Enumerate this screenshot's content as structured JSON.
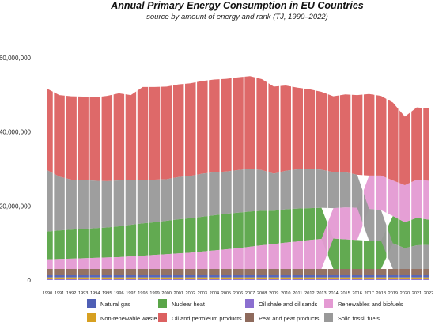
{
  "chart_data": {
    "type": "area",
    "title": "Annual Primary Energy Consumption in EU Countries",
    "subtitle": "source by amount of energy and rank (TJ, 1990–2022)",
    "xlabel": "",
    "ylabel": "",
    "ylim": [
      0,
      70000000
    ],
    "y_ticks": [
      0,
      20000000,
      40000000,
      60000000
    ],
    "y_tick_labels": [
      "0",
      "20,000,000",
      "40,000,000",
      "60,000,000"
    ],
    "grid": false,
    "legend_position": "bottom",
    "stacking": "ranked (smallest at bottom, largest on top, per year)",
    "x": [
      1990,
      1991,
      1992,
      1993,
      1994,
      1995,
      1996,
      1997,
      1998,
      1999,
      2000,
      2001,
      2002,
      2003,
      2004,
      2005,
      2006,
      2007,
      2008,
      2009,
      2010,
      2011,
      2012,
      2013,
      2014,
      2015,
      2016,
      2017,
      2018,
      2019,
      2020,
      2021,
      2022
    ],
    "series": [
      {
        "name": "Natural gas",
        "color": "#4f5fb5",
        "values": [
          800000,
          800000,
          800000,
          800000,
          800000,
          800000,
          800000,
          800000,
          800000,
          800000,
          800000,
          800000,
          800000,
          800000,
          800000,
          800000,
          800000,
          800000,
          800000,
          800000,
          800000,
          800000,
          800000,
          800000,
          800000,
          800000,
          800000,
          800000,
          800000,
          800000,
          800000,
          800000,
          800000
        ]
      },
      {
        "name": "Nuclear heat",
        "color": "#5aa548",
        "values": [
          7500000,
          7700000,
          7800000,
          7900000,
          8000000,
          8100000,
          8300000,
          8500000,
          8700000,
          8800000,
          9000000,
          9200000,
          9300000,
          9400000,
          9500000,
          9600000,
          9600000,
          9500000,
          9300000,
          9000000,
          9000000,
          8900000,
          8600000,
          8400000,
          8200000,
          8000000,
          7800000,
          7600000,
          7600000,
          7400000,
          7000000,
          7400000,
          6800000
        ]
      },
      {
        "name": "Oil shale and oil sands",
        "color": "#8b6fd0",
        "values": [
          300000,
          300000,
          300000,
          300000,
          300000,
          300000,
          300000,
          300000,
          300000,
          300000,
          300000,
          300000,
          300000,
          300000,
          300000,
          300000,
          300000,
          300000,
          300000,
          300000,
          300000,
          300000,
          300000,
          300000,
          300000,
          300000,
          300000,
          300000,
          300000,
          300000,
          300000,
          300000,
          300000
        ]
      },
      {
        "name": "Renewables and biofuels",
        "color": "#e49ad3",
        "values": [
          2600000,
          2700000,
          2800000,
          2900000,
          3000000,
          3100000,
          3200000,
          3400000,
          3600000,
          3800000,
          4000000,
          4200000,
          4400000,
          4700000,
          5000000,
          5300000,
          5600000,
          6000000,
          6400000,
          6700000,
          7100000,
          7400000,
          7800000,
          8100000,
          8200000,
          8600000,
          8700000,
          9000000,
          9300000,
          9600000,
          10000000,
          10300000,
          10500000
        ]
      },
      {
        "name": "Non-renewable waste",
        "color": "#d7a021",
        "values": [
          400000,
          400000,
          400000,
          400000,
          400000,
          400000,
          400000,
          400000,
          400000,
          400000,
          400000,
          400000,
          400000,
          400000,
          400000,
          400000,
          400000,
          400000,
          400000,
          400000,
          400000,
          400000,
          400000,
          400000,
          400000,
          400000,
          400000,
          400000,
          400000,
          400000,
          400000,
          400000,
          400000
        ]
      },
      {
        "name": "Oil and petroleum products",
        "color": "#dc6161",
        "values": [
          22000000,
          22000000,
          22500000,
          22500000,
          22500000,
          23000000,
          23500000,
          23000000,
          25000000,
          25000000,
          25000000,
          25000000,
          25000000,
          25000000,
          25000000,
          25000000,
          25000000,
          25000000,
          24500000,
          23500000,
          23000000,
          22000000,
          21500000,
          21000000,
          20500000,
          21000000,
          21500000,
          22000000,
          21500000,
          21000000,
          18500000,
          19500000,
          19500000
        ]
      },
      {
        "name": "Peat and peat products",
        "color": "#8e6a5c",
        "values": [
          1500000,
          1500000,
          1500000,
          1500000,
          1500000,
          1500000,
          1500000,
          1500000,
          1500000,
          1500000,
          1500000,
          1500000,
          1500000,
          1500000,
          1500000,
          1500000,
          1500000,
          1500000,
          1500000,
          1500000,
          1500000,
          1500000,
          1500000,
          1500000,
          1500000,
          1500000,
          1500000,
          1500000,
          1500000,
          1500000,
          1500000,
          1500000,
          1500000
        ]
      },
      {
        "name": "Solid fossil fuels",
        "color": "#999999",
        "values": [
          16500000,
          14500000,
          13500000,
          13200000,
          12800000,
          12500000,
          12400000,
          12000000,
          11800000,
          11500000,
          11200000,
          11400000,
          11400000,
          11600000,
          11600000,
          11400000,
          11500000,
          11500000,
          11000000,
          10000000,
          10400000,
          10600000,
          10600000,
          10300000,
          9700000,
          9500000,
          8900000,
          8600000,
          8300000,
          6900000,
          5600000,
          6400000,
          6500000
        ]
      }
    ]
  }
}
